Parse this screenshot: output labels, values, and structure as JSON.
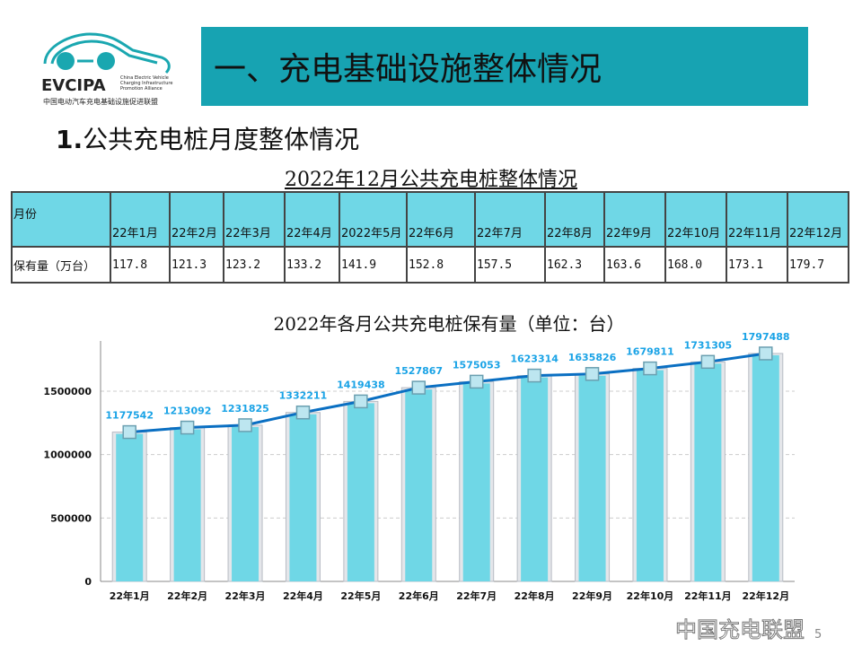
{
  "logo": {
    "name": "EVCIPA",
    "en": "China Electric Vehicle Charging Infrastructure Promotion Alliance",
    "cn": "中国电动汽车充电基础设施促进联盟",
    "color": "#1aa7b0"
  },
  "header": {
    "title": "一、充电基础设施整体情况",
    "bg": "#17a3b2"
  },
  "subtitle": {
    "num": "1.",
    "text": "公共充电桩月度整体情况"
  },
  "table": {
    "title": "2022年12月公共充电桩整体情况",
    "row_labels": [
      "月份",
      "保有量（万台）"
    ],
    "months": [
      "22年1月",
      "22年2月",
      "22年3月",
      "22年4月",
      "2022年5月",
      "22年6月",
      "22年7月",
      "22年8月",
      "22年9月",
      "22年10月",
      "22年11月",
      "22年12月"
    ],
    "values": [
      "117.8",
      "121.3",
      "123.2",
      "133.2",
      "141.9",
      "152.8",
      "157.5",
      "162.3",
      "163.6",
      "168.0",
      "173.1",
      "179.7"
    ],
    "header_bg": "#6fd7e6"
  },
  "chart_data": {
    "type": "bar",
    "title": "2022年各月公共充电桩保有量（单位：台）",
    "categories": [
      "22年1月",
      "22年2月",
      "22年3月",
      "22年4月",
      "22年5月",
      "22年6月",
      "22年7月",
      "22年8月",
      "22年9月",
      "22年10月",
      "22年11月",
      "22年12月"
    ],
    "values": [
      1177542,
      1213092,
      1231825,
      1332211,
      1419438,
      1527867,
      1575053,
      1623314,
      1635826,
      1679811,
      1731305,
      1797488
    ],
    "overlay_line": true,
    "ylim": [
      0,
      1800000
    ],
    "yticks": [
      0,
      500000,
      1000000,
      1500000
    ],
    "grid": true,
    "bar_color": "#6fd7e6",
    "line_color": "#0a6fc2",
    "label_color": "#1aa3e6"
  },
  "watermark": "中国充电联盟",
  "page_number": "5"
}
